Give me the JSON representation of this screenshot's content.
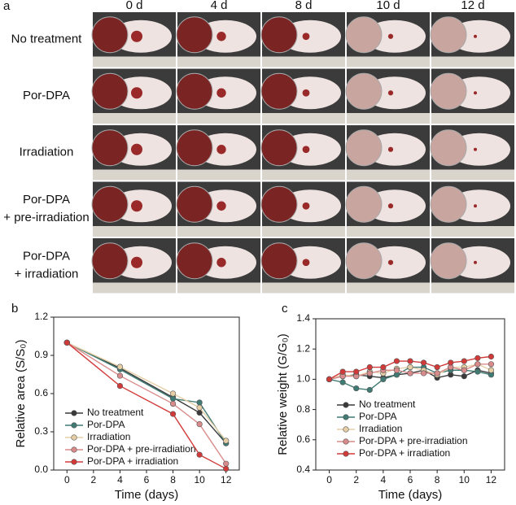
{
  "photo_grid": {
    "panel": "a",
    "columns": [
      "0 d",
      "4 d",
      "8 d",
      "10 d",
      "12 d"
    ],
    "rows": [
      [
        "No treatment"
      ],
      [
        "Por-DPA"
      ],
      [
        "Irradiation"
      ],
      [
        "Por-DPA",
        "+ pre-irradiation"
      ],
      [
        "Por-DPA",
        "+ irradiation"
      ]
    ]
  },
  "chart_data": [
    {
      "type": "line",
      "panel": "b",
      "xlabel": "Time (days)",
      "ylabel": "Relative area (S/S₀)",
      "x": [
        0,
        4,
        8,
        10,
        12
      ],
      "xlim": [
        -1,
        13
      ],
      "xticks": [
        0,
        2,
        4,
        6,
        8,
        10,
        12
      ],
      "ylim": [
        0,
        1.2
      ],
      "yticks": [
        {
          "value": 0,
          "label": "0.0"
        },
        0.3,
        0.6,
        0.9,
        1.2
      ],
      "series": [
        {
          "name": "No treatment",
          "color": "#3a3a3a",
          "values": [
            1.0,
            0.8,
            0.57,
            0.45,
            0.21
          ]
        },
        {
          "name": "Por-DPA",
          "color": "#3f7a73",
          "values": [
            1.0,
            0.79,
            0.56,
            0.53,
            0.21
          ]
        },
        {
          "name": "Irradiation",
          "color": "#e6cfa6",
          "values": [
            1.0,
            0.81,
            0.6,
            0.49,
            0.23
          ]
        },
        {
          "name": "Por-DPA + pre-irradiation",
          "color": "#d98b8b",
          "values": [
            1.0,
            0.74,
            0.52,
            0.36,
            0.05
          ]
        },
        {
          "name": "Por-DPA + irradiation",
          "color": "#d23a3a",
          "values": [
            1.0,
            0.66,
            0.44,
            0.12,
            0.01
          ]
        }
      ]
    },
    {
      "type": "line",
      "panel": "c",
      "xlabel": "Time (days)",
      "ylabel": "Relative weight (G/G₀)",
      "x": [
        0,
        1,
        2,
        3,
        4,
        5,
        6,
        7,
        8,
        9,
        10,
        11,
        12
      ],
      "xlim": [
        -1,
        13
      ],
      "xticks": [
        0,
        2,
        4,
        6,
        8,
        10,
        12
      ],
      "ylim": [
        0.4,
        1.4
      ],
      "yticks": [
        0.4,
        0.6,
        0.8,
        {
          "value": 1.0,
          "label": "1.0"
        },
        1.2,
        1.4
      ],
      "series": [
        {
          "name": "No treatment",
          "color": "#3a3a3a",
          "values": [
            1.0,
            1.02,
            1.03,
            1.02,
            1.01,
            1.03,
            1.04,
            1.06,
            1.01,
            1.03,
            1.02,
            1.06,
            1.04
          ]
        },
        {
          "name": "Por-DPA",
          "color": "#3f7a73",
          "values": [
            1.0,
            0.98,
            0.94,
            0.93,
            1.0,
            1.03,
            1.08,
            1.08,
            1.04,
            1.06,
            1.06,
            1.05,
            1.03
          ]
        },
        {
          "name": "Irradiation",
          "color": "#e6cfa6",
          "values": [
            1.0,
            1.03,
            1.02,
            1.05,
            1.04,
            1.07,
            1.08,
            1.06,
            1.03,
            1.08,
            1.08,
            1.1,
            1.06
          ]
        },
        {
          "name": "Por-DPA + pre-irradiation",
          "color": "#d98b8b",
          "values": [
            1.0,
            1.02,
            1.02,
            1.04,
            1.06,
            1.06,
            1.04,
            1.04,
            1.04,
            1.08,
            1.06,
            1.1,
            1.1
          ]
        },
        {
          "name": "Por-DPA + irradiation",
          "color": "#d23a3a",
          "values": [
            1.0,
            1.05,
            1.05,
            1.08,
            1.08,
            1.12,
            1.12,
            1.11,
            1.08,
            1.11,
            1.12,
            1.14,
            1.15
          ]
        }
      ]
    }
  ]
}
